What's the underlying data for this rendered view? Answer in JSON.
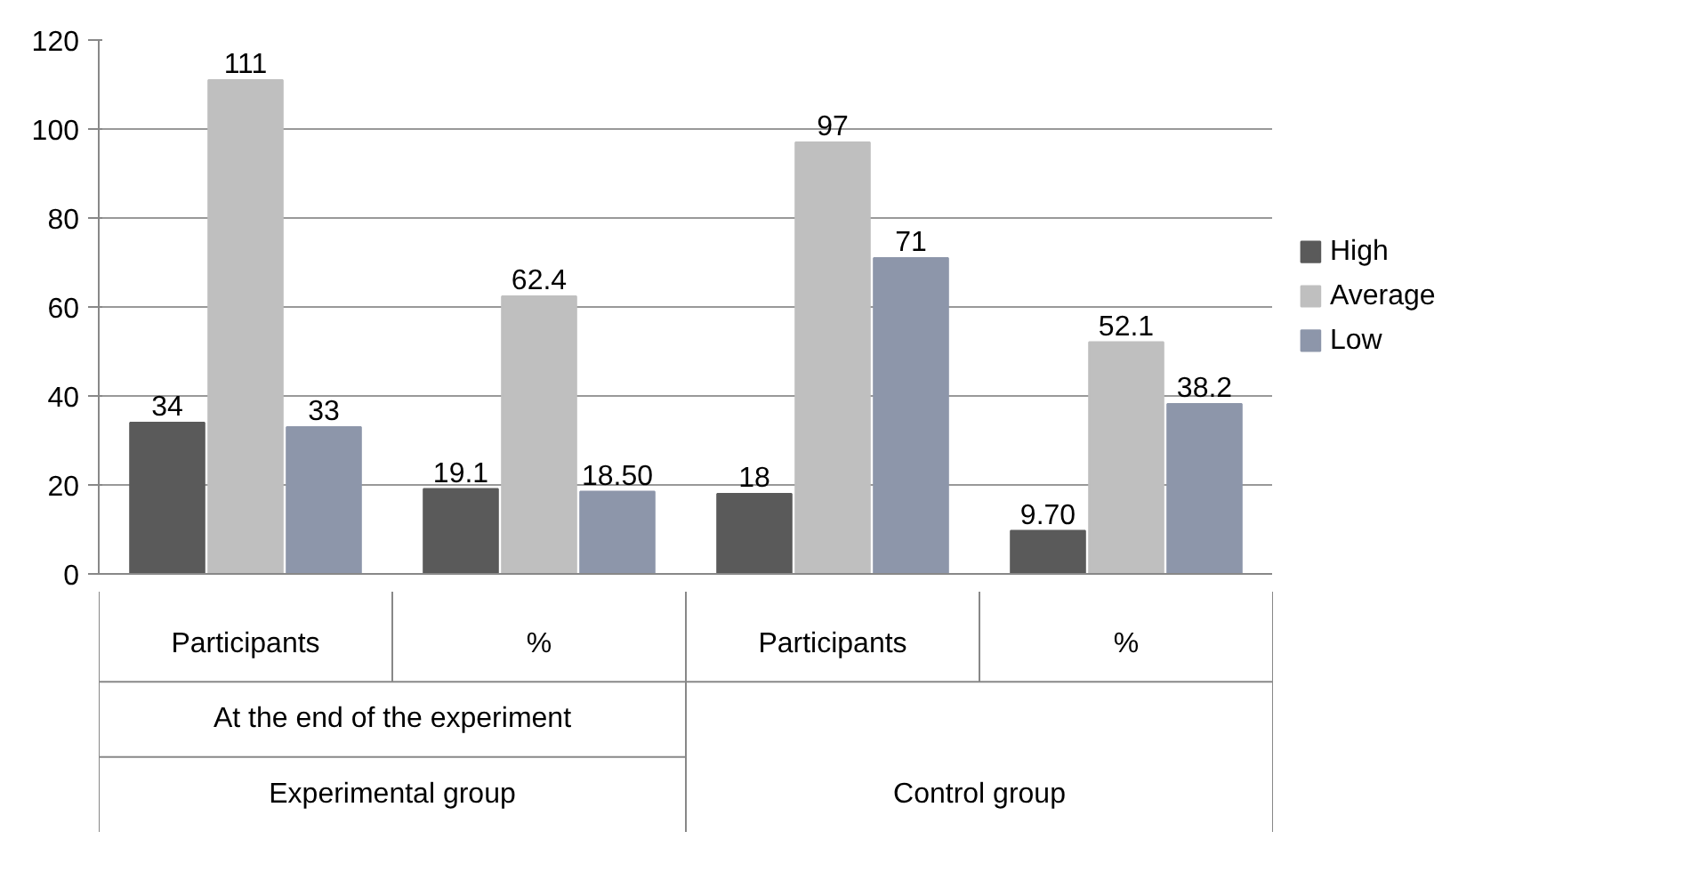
{
  "chart_data": {
    "type": "bar",
    "categories": [
      "Participants",
      "%",
      "Participants",
      "%"
    ],
    "series": [
      {
        "name": "High",
        "color": "#5a5a5a",
        "values": [
          34,
          19.1,
          18,
          9.7
        ],
        "value_labels": [
          "34",
          "19.1",
          "18",
          "9.70"
        ]
      },
      {
        "name": "Average",
        "color": "#bfbfbf",
        "values": [
          111,
          62.4,
          97,
          52.1
        ],
        "value_labels": [
          "111",
          "62.4",
          "97",
          "52.1"
        ]
      },
      {
        "name": "Low",
        "color": "#8d96aa",
        "values": [
          33,
          18.5,
          71,
          38.2
        ],
        "value_labels": [
          "33",
          "18.50",
          "71",
          "38.2"
        ]
      }
    ],
    "annotations": [
      "At the end of the experiment",
      "Experimental group",
      "Control group"
    ],
    "ylim": [
      0,
      120
    ],
    "yticks": [
      0,
      20,
      40,
      60,
      80,
      100,
      120
    ],
    "grid": "y",
    "legend": "right"
  }
}
